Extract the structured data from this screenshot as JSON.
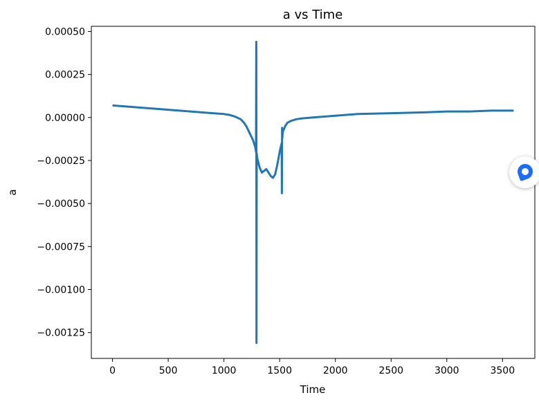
{
  "chart_data": {
    "type": "line",
    "title": "a vs Time",
    "xlabel": "Time",
    "ylabel": "a",
    "xlim": [
      -190,
      3790
    ],
    "ylim": [
      -0.0014,
      0.00053
    ],
    "xticks": [
      0,
      500,
      1000,
      1500,
      2000,
      2500,
      3000,
      3500
    ],
    "xtick_labels": [
      "0",
      "500",
      "1000",
      "1500",
      "2000",
      "2500",
      "3000",
      "3500"
    ],
    "yticks": [
      0.0005,
      0.00025,
      0.0,
      -0.00025,
      -0.0005,
      -0.00075,
      -0.001,
      -0.00125
    ],
    "ytick_labels": [
      "0.00050",
      "0.00025",
      "0.00000",
      "−0.00025",
      "−0.00050",
      "−0.00075",
      "−0.00100",
      "−0.00125"
    ],
    "grid": false,
    "series_color": "#1f77b4",
    "series": [
      {
        "x": [
          0,
          100,
          200,
          300,
          400,
          500,
          600,
          700,
          800,
          900,
          1000,
          1050,
          1100,
          1150,
          1180,
          1200,
          1230,
          1260,
          1280,
          1288,
          1290,
          1292,
          1294,
          1296,
          1300,
          1320,
          1340,
          1360,
          1380,
          1400,
          1420,
          1440,
          1460,
          1480,
          1500,
          1510,
          1518,
          1520,
          1522,
          1524,
          1526,
          1530,
          1550,
          1570,
          1600,
          1650,
          1700,
          1800,
          2000,
          2200,
          2500,
          2800,
          3000,
          3200,
          3400,
          3500,
          3600
        ],
        "y": [
          7e-05,
          6.5e-05,
          6e-05,
          5.5e-05,
          5e-05,
          4.5e-05,
          4e-05,
          3.5e-05,
          3e-05,
          2.5e-05,
          2e-05,
          1.5e-05,
          5e-06,
          -1e-05,
          -3e-05,
          -5e-05,
          -9e-05,
          -0.00013,
          -0.00017,
          -0.0002,
          0.00044,
          -0.00131,
          -0.00021,
          -0.00022,
          -0.00024,
          -0.00029,
          -0.00032,
          -0.00031,
          -0.0003,
          -0.00032,
          -0.00034,
          -0.00035,
          -0.00033,
          -0.00027,
          -0.0002,
          -0.00017,
          -0.00015,
          -0.00044,
          -6e-05,
          -0.00012,
          -0.0001,
          -8e-05,
          -5e-05,
          -3e-05,
          -2e-05,
          -1e-05,
          -5e-06,
          0.0,
          1e-05,
          2e-05,
          2.5e-05,
          3e-05,
          3.5e-05,
          3.5e-05,
          4e-05,
          4e-05,
          4e-05
        ]
      }
    ]
  }
}
